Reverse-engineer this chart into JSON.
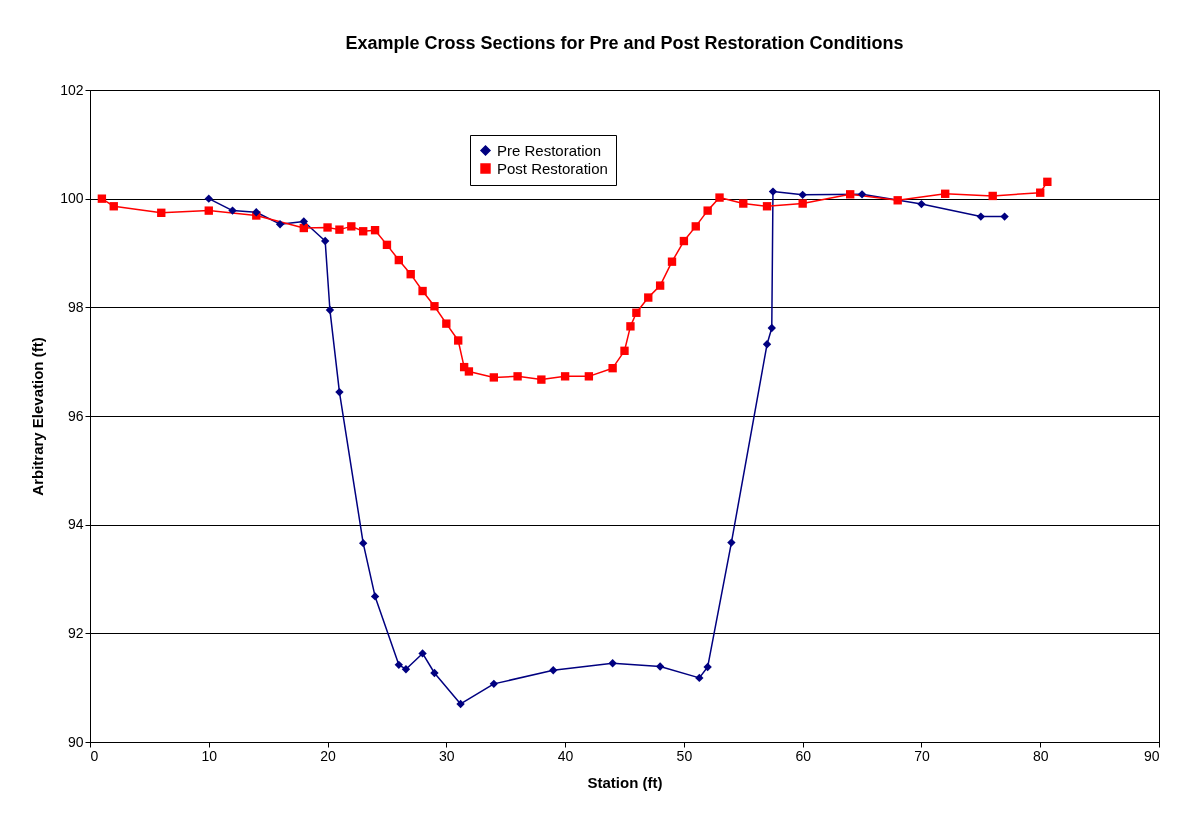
{
  "chart_data": {
    "type": "line",
    "title": "Example Cross Sections for Pre and Post Restoration Conditions",
    "xlabel": "Station (ft)",
    "ylabel": "Arbitrary Elevation (ft)",
    "xlim": [
      0,
      90
    ],
    "xticks": [
      0,
      10,
      20,
      30,
      40,
      50,
      60,
      70,
      80,
      90
    ],
    "ylim": [
      90,
      102
    ],
    "yticks": [
      90,
      92,
      94,
      96,
      98,
      100,
      102
    ],
    "grid": "y",
    "legend": "top",
    "line_style": "solid",
    "series": [
      {
        "name": "Pre Restoration",
        "color": "#000080",
        "marker": "diamond",
        "x": [
          10,
          12,
          14,
          16,
          18,
          19.8,
          20.2,
          21,
          23,
          24,
          26,
          26.6,
          28,
          29,
          31.2,
          34,
          39,
          44,
          48,
          51.3,
          52,
          54,
          57,
          57.4,
          57.5,
          60,
          65,
          70,
          75,
          77
        ],
        "values": [
          100.0,
          99.78,
          99.75,
          99.53,
          99.58,
          99.22,
          97.95,
          96.44,
          93.66,
          92.68,
          91.42,
          91.34,
          91.63,
          91.27,
          90.7,
          91.07,
          91.32,
          91.45,
          91.39,
          91.18,
          91.38,
          93.67,
          97.32,
          97.62,
          100.13,
          100.07,
          100.08,
          99.9,
          99.67,
          99.67
        ]
      },
      {
        "name": "Post Restoration",
        "color": "#ff0000",
        "marker": "square",
        "x": [
          1,
          2,
          6,
          10,
          14,
          18,
          20,
          21,
          22,
          23,
          24,
          25,
          26,
          27,
          28,
          29,
          30,
          31,
          31.5,
          31.9,
          34,
          36,
          38,
          40,
          42,
          44,
          45,
          45.5,
          46,
          47,
          48,
          49,
          50,
          51,
          52,
          53,
          55,
          57,
          60,
          64,
          68,
          72,
          76,
          80,
          80.6
        ],
        "values": [
          100.0,
          99.86,
          99.74,
          99.78,
          99.69,
          99.46,
          99.47,
          99.43,
          99.49,
          99.4,
          99.42,
          99.15,
          98.87,
          98.61,
          98.3,
          98.02,
          97.7,
          97.39,
          96.9,
          96.82,
          96.71,
          96.73,
          96.67,
          96.73,
          96.73,
          96.88,
          97.2,
          97.65,
          97.9,
          98.18,
          98.4,
          98.84,
          99.22,
          99.49,
          99.78,
          100.02,
          99.91,
          99.86,
          99.91,
          100.08,
          99.97,
          100.09,
          100.05,
          100.11,
          100.31
        ]
      }
    ]
  }
}
